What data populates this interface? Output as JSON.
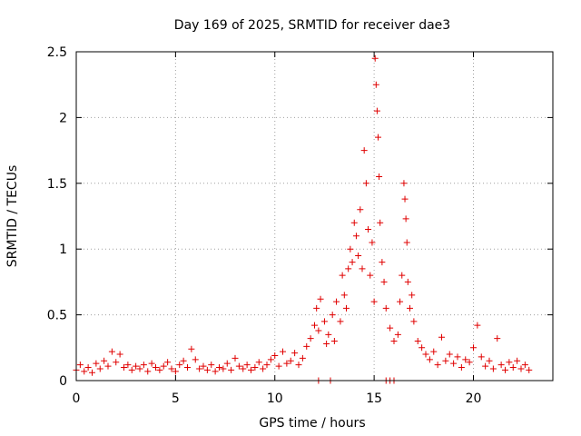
{
  "chart_data": {
    "type": "scatter",
    "title": "Day 169 of 2025, SRMTID for receiver dae3",
    "xlabel": "GPS time / hours",
    "ylabel": "SRMTID / TECUs",
    "xlim": [
      0,
      24
    ],
    "ylim": [
      0,
      2.5
    ],
    "xticks": [
      0,
      5,
      10,
      15,
      20
    ],
    "xtick_labels": [
      "0",
      "5",
      "10",
      "15",
      "20"
    ],
    "yticks": [
      0,
      0.5,
      1,
      1.5,
      2,
      2.5
    ],
    "ytick_labels": [
      "0",
      "0.5",
      "1",
      "1.5",
      "2",
      "2.5"
    ],
    "grid": true,
    "marker": "plus",
    "color": "#e00000",
    "series": [
      {
        "name": "SRMTID",
        "points": [
          [
            0.0,
            0.08
          ],
          [
            0.2,
            0.12
          ],
          [
            0.4,
            0.07
          ],
          [
            0.6,
            0.1
          ],
          [
            0.8,
            0.06
          ],
          [
            1.0,
            0.13
          ],
          [
            1.2,
            0.09
          ],
          [
            1.4,
            0.15
          ],
          [
            1.6,
            0.11
          ],
          [
            1.8,
            0.22
          ],
          [
            2.0,
            0.14
          ],
          [
            2.2,
            0.2
          ],
          [
            2.4,
            0.1
          ],
          [
            2.6,
            0.12
          ],
          [
            2.8,
            0.08
          ],
          [
            3.0,
            0.11
          ],
          [
            3.2,
            0.09
          ],
          [
            3.4,
            0.12
          ],
          [
            3.6,
            0.07
          ],
          [
            3.8,
            0.13
          ],
          [
            4.0,
            0.1
          ],
          [
            4.2,
            0.08
          ],
          [
            4.4,
            0.11
          ],
          [
            4.6,
            0.14
          ],
          [
            4.8,
            0.09
          ],
          [
            5.0,
            0.07
          ],
          [
            5.2,
            0.12
          ],
          [
            5.4,
            0.15
          ],
          [
            5.6,
            0.1
          ],
          [
            5.8,
            0.24
          ],
          [
            6.0,
            0.16
          ],
          [
            6.2,
            0.09
          ],
          [
            6.4,
            0.11
          ],
          [
            6.6,
            0.08
          ],
          [
            6.8,
            0.12
          ],
          [
            7.0,
            0.07
          ],
          [
            7.2,
            0.1
          ],
          [
            7.4,
            0.09
          ],
          [
            7.6,
            0.13
          ],
          [
            7.8,
            0.08
          ],
          [
            8.0,
            0.17
          ],
          [
            8.2,
            0.11
          ],
          [
            8.4,
            0.09
          ],
          [
            8.6,
            0.12
          ],
          [
            8.8,
            0.08
          ],
          [
            9.0,
            0.1
          ],
          [
            9.2,
            0.14
          ],
          [
            9.4,
            0.09
          ],
          [
            9.6,
            0.12
          ],
          [
            9.8,
            0.16
          ],
          [
            10.0,
            0.19
          ],
          [
            10.2,
            0.11
          ],
          [
            10.4,
            0.22
          ],
          [
            10.6,
            0.13
          ],
          [
            10.8,
            0.15
          ],
          [
            11.0,
            0.21
          ],
          [
            11.2,
            0.12
          ],
          [
            11.4,
            0.17
          ],
          [
            11.6,
            0.26
          ],
          [
            11.8,
            0.32
          ],
          [
            12.0,
            0.42
          ],
          [
            12.1,
            0.55
          ],
          [
            12.2,
            0.38
          ],
          [
            12.3,
            0.62
          ],
          [
            12.5,
            0.45
          ],
          [
            12.6,
            0.28
          ],
          [
            12.7,
            0.35
          ],
          [
            12.9,
            0.5
          ],
          [
            13.0,
            0.3
          ],
          [
            13.1,
            0.6
          ],
          [
            13.3,
            0.45
          ],
          [
            13.4,
            0.8
          ],
          [
            13.5,
            0.65
          ],
          [
            13.6,
            0.55
          ],
          [
            13.7,
            0.85
          ],
          [
            13.8,
            1.0
          ],
          [
            13.9,
            0.9
          ],
          [
            14.0,
            1.2
          ],
          [
            14.1,
            1.1
          ],
          [
            14.2,
            0.95
          ],
          [
            14.3,
            1.3
          ],
          [
            14.4,
            0.85
          ],
          [
            14.5,
            1.75
          ],
          [
            14.6,
            1.5
          ],
          [
            14.7,
            1.15
          ],
          [
            14.8,
            0.8
          ],
          [
            14.9,
            1.05
          ],
          [
            15.0,
            0.6
          ],
          [
            15.05,
            2.45
          ],
          [
            15.1,
            2.25
          ],
          [
            15.15,
            2.05
          ],
          [
            15.2,
            1.85
          ],
          [
            15.25,
            1.55
          ],
          [
            15.3,
            1.2
          ],
          [
            15.4,
            0.9
          ],
          [
            15.5,
            0.75
          ],
          [
            15.6,
            0.55
          ],
          [
            15.8,
            0.4
          ],
          [
            16.0,
            0.3
          ],
          [
            16.2,
            0.35
          ],
          [
            16.3,
            0.6
          ],
          [
            16.4,
            0.8
          ],
          [
            16.5,
            1.5
          ],
          [
            16.55,
            1.38
          ],
          [
            16.6,
            1.23
          ],
          [
            16.65,
            1.05
          ],
          [
            16.7,
            0.75
          ],
          [
            16.8,
            0.55
          ],
          [
            16.9,
            0.65
          ],
          [
            17.0,
            0.45
          ],
          [
            17.2,
            0.3
          ],
          [
            17.4,
            0.25
          ],
          [
            17.6,
            0.2
          ],
          [
            17.8,
            0.16
          ],
          [
            18.0,
            0.22
          ],
          [
            18.2,
            0.12
          ],
          [
            18.4,
            0.33
          ],
          [
            18.6,
            0.15
          ],
          [
            18.8,
            0.2
          ],
          [
            19.0,
            0.13
          ],
          [
            19.2,
            0.18
          ],
          [
            19.4,
            0.1
          ],
          [
            19.6,
            0.16
          ],
          [
            19.8,
            0.14
          ],
          [
            20.0,
            0.25
          ],
          [
            20.2,
            0.42
          ],
          [
            20.4,
            0.18
          ],
          [
            20.6,
            0.11
          ],
          [
            20.8,
            0.15
          ],
          [
            21.0,
            0.09
          ],
          [
            21.2,
            0.32
          ],
          [
            21.4,
            0.12
          ],
          [
            21.6,
            0.08
          ],
          [
            21.8,
            0.14
          ],
          [
            22.0,
            0.1
          ],
          [
            22.2,
            0.15
          ],
          [
            22.4,
            0.09
          ],
          [
            22.6,
            0.12
          ],
          [
            22.8,
            0.08
          ],
          [
            12.2,
            0.0
          ],
          [
            12.8,
            0.0
          ],
          [
            15.6,
            0.0
          ],
          [
            15.8,
            0.0
          ],
          [
            16.0,
            0.0
          ]
        ]
      }
    ]
  }
}
